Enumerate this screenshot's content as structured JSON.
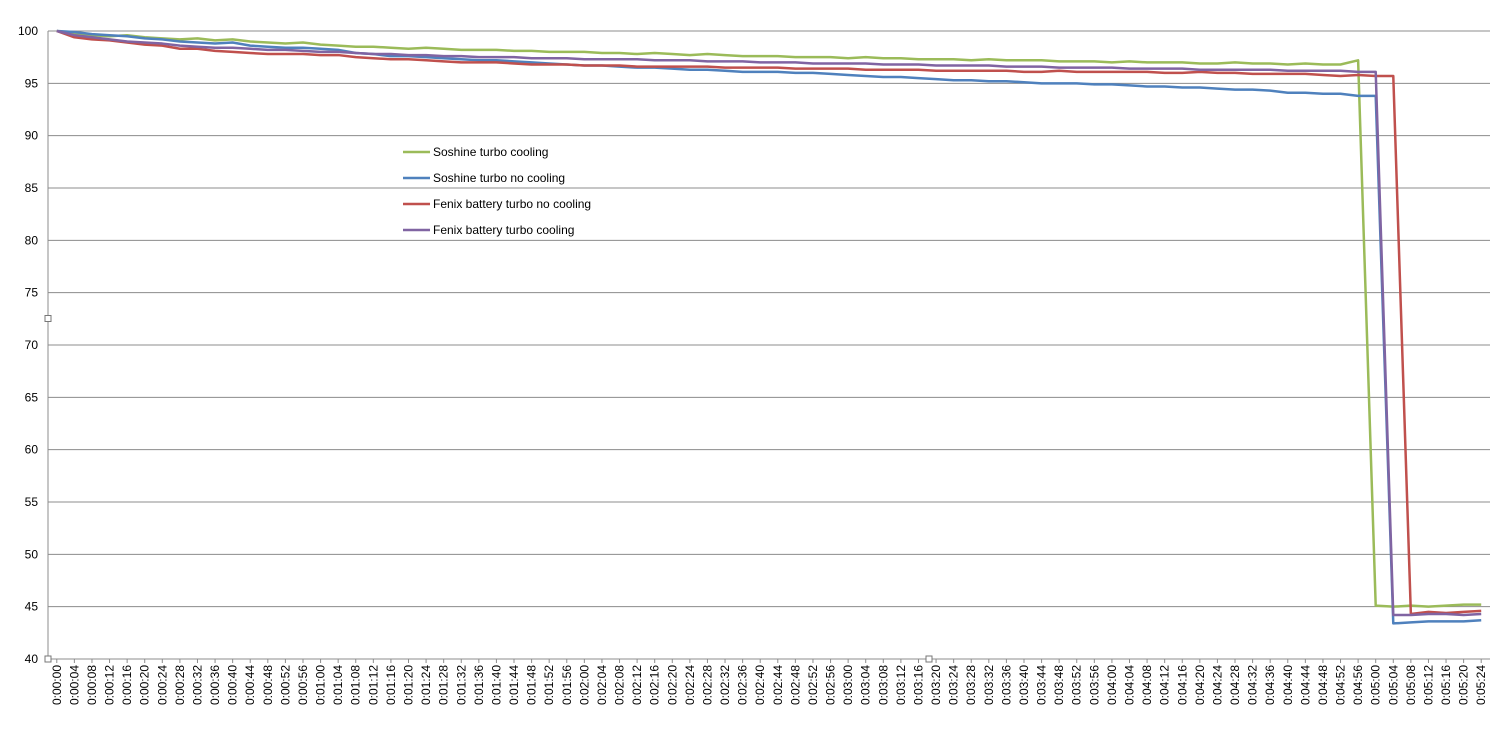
{
  "chart_data": {
    "type": "line",
    "categories": [
      "0:00:00",
      "0:00:04",
      "0:00:08",
      "0:00:12",
      "0:00:16",
      "0:00:20",
      "0:00:24",
      "0:00:28",
      "0:00:32",
      "0:00:36",
      "0:00:40",
      "0:00:44",
      "0:00:48",
      "0:00:52",
      "0:00:56",
      "0:01:00",
      "0:01:04",
      "0:01:08",
      "0:01:12",
      "0:01:16",
      "0:01:20",
      "0:01:24",
      "0:01:28",
      "0:01:32",
      "0:01:36",
      "0:01:40",
      "0:01:44",
      "0:01:48",
      "0:01:52",
      "0:01:56",
      "0:02:00",
      "0:02:04",
      "0:02:08",
      "0:02:12",
      "0:02:16",
      "0:02:20",
      "0:02:24",
      "0:02:28",
      "0:02:32",
      "0:02:36",
      "0:02:40",
      "0:02:44",
      "0:02:48",
      "0:02:52",
      "0:02:56",
      "0:03:00",
      "0:03:04",
      "0:03:08",
      "0:03:12",
      "0:03:16",
      "0:03:20",
      "0:03:24",
      "0:03:28",
      "0:03:32",
      "0:03:36",
      "0:03:40",
      "0:03:44",
      "0:03:48",
      "0:03:52",
      "0:03:56",
      "0:04:00",
      "0:04:04",
      "0:04:08",
      "0:04:12",
      "0:04:16",
      "0:04:20",
      "0:04:24",
      "0:04:28",
      "0:04:32",
      "0:04:36",
      "0:04:40",
      "0:04:44",
      "0:04:48",
      "0:04:52",
      "0:04:56",
      "0:05:00",
      "0:05:04",
      "0:05:08",
      "0:05:12",
      "0:05:16",
      "0:05:20",
      "0:05:24"
    ],
    "series": [
      {
        "name": "Soshine turbo cooling",
        "color": "#9bbb59",
        "values": [
          100,
          99.8,
          99.6,
          99.5,
          99.6,
          99.4,
          99.3,
          99.2,
          99.3,
          99.1,
          99.2,
          99.0,
          98.9,
          98.8,
          98.9,
          98.7,
          98.6,
          98.5,
          98.5,
          98.4,
          98.3,
          98.4,
          98.3,
          98.2,
          98.2,
          98.2,
          98.1,
          98.1,
          98.0,
          98.0,
          98.0,
          97.9,
          97.9,
          97.8,
          97.9,
          97.8,
          97.7,
          97.8,
          97.7,
          97.6,
          97.6,
          97.6,
          97.5,
          97.5,
          97.5,
          97.4,
          97.5,
          97.4,
          97.4,
          97.3,
          97.3,
          97.3,
          97.2,
          97.3,
          97.2,
          97.2,
          97.2,
          97.1,
          97.1,
          97.1,
          97.0,
          97.1,
          97.0,
          97.0,
          97.0,
          96.9,
          96.9,
          97.0,
          96.9,
          96.9,
          96.8,
          96.9,
          96.8,
          96.8,
          97.2,
          45.1,
          45.0,
          45.1,
          45.0,
          45.1,
          45.2,
          45.2
        ]
      },
      {
        "name": "Soshine turbo no cooling",
        "color": "#4f81bd",
        "values": [
          100,
          99.9,
          99.7,
          99.6,
          99.5,
          99.3,
          99.2,
          99.0,
          98.9,
          98.8,
          98.9,
          98.6,
          98.5,
          98.4,
          98.4,
          98.3,
          98.2,
          97.9,
          97.8,
          97.6,
          97.6,
          97.5,
          97.4,
          97.3,
          97.2,
          97.2,
          97.1,
          97.0,
          96.9,
          96.8,
          96.7,
          96.7,
          96.6,
          96.5,
          96.5,
          96.4,
          96.3,
          96.3,
          96.2,
          96.1,
          96.1,
          96.1,
          96.0,
          96.0,
          95.9,
          95.8,
          95.7,
          95.6,
          95.6,
          95.5,
          95.4,
          95.3,
          95.3,
          95.2,
          95.2,
          95.1,
          95.0,
          95.0,
          95.0,
          94.9,
          94.9,
          94.8,
          94.7,
          94.7,
          94.6,
          94.6,
          94.5,
          94.4,
          94.4,
          94.3,
          94.1,
          94.1,
          94.0,
          94.0,
          93.8,
          93.8,
          43.4,
          43.5,
          43.6,
          43.6,
          43.6,
          43.7
        ]
      },
      {
        "name": "Fenix battery turbo no cooling",
        "color": "#c0504d",
        "values": [
          100,
          99.4,
          99.2,
          99.1,
          98.9,
          98.7,
          98.6,
          98.3,
          98.3,
          98.1,
          98.0,
          97.9,
          97.8,
          97.8,
          97.8,
          97.7,
          97.7,
          97.5,
          97.4,
          97.3,
          97.3,
          97.2,
          97.1,
          97.0,
          97.0,
          97.0,
          96.9,
          96.8,
          96.8,
          96.8,
          96.7,
          96.7,
          96.7,
          96.6,
          96.6,
          96.6,
          96.6,
          96.6,
          96.5,
          96.5,
          96.5,
          96.5,
          96.4,
          96.4,
          96.4,
          96.4,
          96.3,
          96.3,
          96.3,
          96.3,
          96.2,
          96.2,
          96.2,
          96.2,
          96.2,
          96.1,
          96.1,
          96.2,
          96.1,
          96.1,
          96.1,
          96.1,
          96.1,
          96.0,
          96.0,
          96.1,
          96.0,
          96.0,
          95.9,
          95.9,
          95.9,
          95.9,
          95.8,
          95.7,
          95.8,
          95.7,
          95.7,
          44.3,
          44.5,
          44.4,
          44.5,
          44.6
        ]
      },
      {
        "name": "Fenix battery turbo cooling",
        "color": "#8064a2",
        "values": [
          100,
          99.6,
          99.4,
          99.2,
          99.0,
          98.9,
          98.8,
          98.6,
          98.5,
          98.4,
          98.4,
          98.3,
          98.2,
          98.2,
          98.1,
          98.0,
          98.0,
          97.9,
          97.8,
          97.8,
          97.7,
          97.7,
          97.6,
          97.6,
          97.5,
          97.5,
          97.5,
          97.4,
          97.4,
          97.4,
          97.3,
          97.3,
          97.3,
          97.3,
          97.2,
          97.2,
          97.2,
          97.1,
          97.1,
          97.1,
          97.0,
          97.0,
          97.0,
          96.9,
          96.9,
          96.9,
          96.9,
          96.8,
          96.8,
          96.8,
          96.7,
          96.7,
          96.7,
          96.7,
          96.6,
          96.6,
          96.6,
          96.5,
          96.5,
          96.5,
          96.5,
          96.4,
          96.4,
          96.4,
          96.4,
          96.3,
          96.3,
          96.3,
          96.3,
          96.3,
          96.2,
          96.2,
          96.2,
          96.2,
          96.1,
          96.1,
          44.2,
          44.2,
          44.3,
          44.3,
          44.2,
          44.3
        ]
      }
    ],
    "ylim": [
      40,
      100
    ],
    "yticks": [
      40,
      45,
      50,
      55,
      60,
      65,
      70,
      75,
      80,
      85,
      90,
      95,
      100
    ],
    "grid": true,
    "legend": "upper-left"
  }
}
